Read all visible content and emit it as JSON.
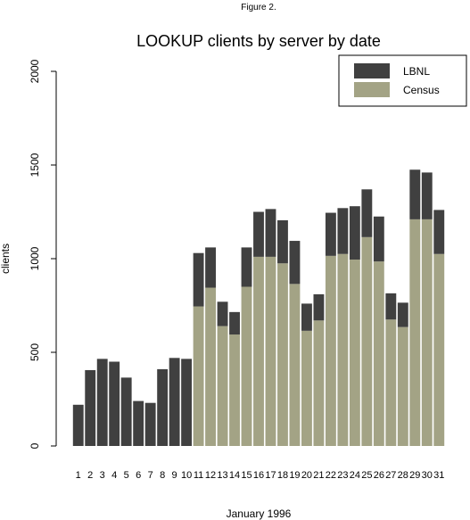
{
  "figure_label": "Figure 2.",
  "chart_data": {
    "type": "bar",
    "stacked": true,
    "title": "LOOKUP clients by server by date",
    "xlabel": "January 1996",
    "ylabel": "clients",
    "ylim": [
      0,
      2000
    ],
    "yticks": [
      0,
      500,
      1000,
      1500,
      2000
    ],
    "grid": false,
    "legend_position": "top-right",
    "categories": [
      "1",
      "2",
      "3",
      "4",
      "5",
      "6",
      "7",
      "8",
      "9",
      "10",
      "11",
      "12",
      "13",
      "14",
      "15",
      "16",
      "17",
      "18",
      "19",
      "20",
      "21",
      "22",
      "23",
      "24",
      "25",
      "26",
      "27",
      "28",
      "29",
      "30",
      "31"
    ],
    "series": [
      {
        "name": "LBNL",
        "color": "#404040",
        "values": [
          220,
          405,
          465,
          450,
          365,
          240,
          230,
          410,
          470,
          465,
          285,
          215,
          130,
          120,
          210,
          240,
          255,
          230,
          230,
          145,
          140,
          230,
          245,
          285,
          255,
          240,
          140,
          130,
          265,
          250,
          235
        ]
      },
      {
        "name": "Census",
        "color": "#a3a385",
        "values": [
          0,
          0,
          0,
          0,
          0,
          0,
          0,
          0,
          0,
          0,
          745,
          845,
          640,
          595,
          850,
          1010,
          1010,
          975,
          865,
          615,
          670,
          1015,
          1025,
          995,
          1115,
          985,
          675,
          635,
          1210,
          1210,
          1025
        ]
      }
    ]
  }
}
